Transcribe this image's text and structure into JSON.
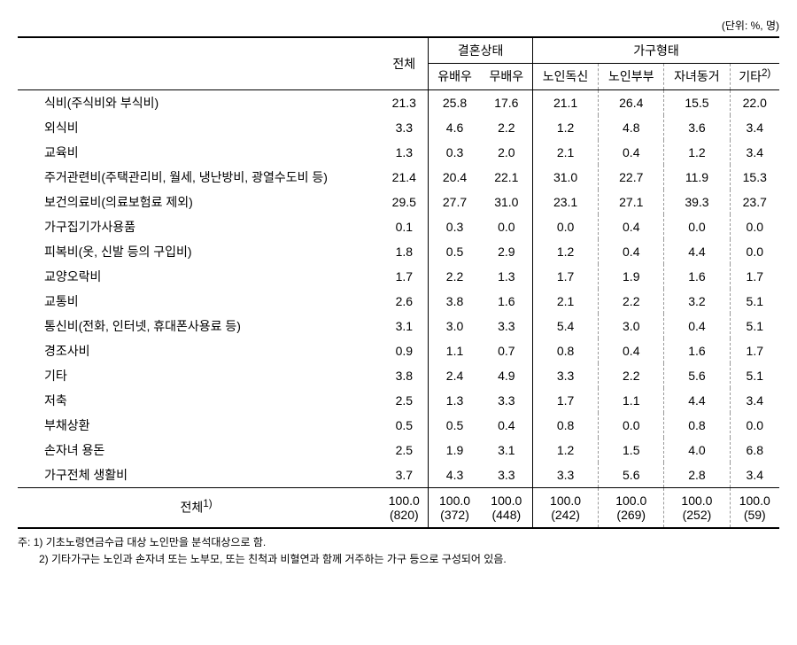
{
  "unit": "(단위: %, 명)",
  "headers": {
    "blank": "",
    "total": "전체",
    "marital": "결혼상태",
    "marital_1": "유배우",
    "marital_2": "무배우",
    "household": "가구형태",
    "house_1": "노인독신",
    "house_2": "노인부부",
    "house_3": "자녀동거",
    "house_4": "기타",
    "house_4_sup": "2)"
  },
  "rows": [
    {
      "label": "식비(주식비와 부식비)",
      "v": [
        "21.3",
        "25.8",
        "17.6",
        "21.1",
        "26.4",
        "15.5",
        "22.0"
      ]
    },
    {
      "label": "외식비",
      "v": [
        "3.3",
        "4.6",
        "2.2",
        "1.2",
        "4.8",
        "3.6",
        "3.4"
      ]
    },
    {
      "label": "교육비",
      "v": [
        "1.3",
        "0.3",
        "2.0",
        "2.1",
        "0.4",
        "1.2",
        "3.4"
      ]
    },
    {
      "label": "주거관련비(주택관리비, 월세, 냉난방비, 광열수도비 등)",
      "v": [
        "21.4",
        "20.4",
        "22.1",
        "31.0",
        "22.7",
        "11.9",
        "15.3"
      ]
    },
    {
      "label": "보건의료비(의료보험료 제외)",
      "v": [
        "29.5",
        "27.7",
        "31.0",
        "23.1",
        "27.1",
        "39.3",
        "23.7"
      ]
    },
    {
      "label": "가구집기가사용품",
      "v": [
        "0.1",
        "0.3",
        "0.0",
        "0.0",
        "0.4",
        "0.0",
        "0.0"
      ]
    },
    {
      "label": "피복비(옷, 신발 등의 구입비)",
      "v": [
        "1.8",
        "0.5",
        "2.9",
        "1.2",
        "0.4",
        "4.4",
        "0.0"
      ]
    },
    {
      "label": "교양오락비",
      "v": [
        "1.7",
        "2.2",
        "1.3",
        "1.7",
        "1.9",
        "1.6",
        "1.7"
      ]
    },
    {
      "label": "교통비",
      "v": [
        "2.6",
        "3.8",
        "1.6",
        "2.1",
        "2.2",
        "3.2",
        "5.1"
      ]
    },
    {
      "label": "통신비(전화, 인터넷, 휴대폰사용료 등)",
      "v": [
        "3.1",
        "3.0",
        "3.3",
        "5.4",
        "3.0",
        "0.4",
        "5.1"
      ]
    },
    {
      "label": "경조사비",
      "v": [
        "0.9",
        "1.1",
        "0.7",
        "0.8",
        "0.4",
        "1.6",
        "1.7"
      ]
    },
    {
      "label": "기타",
      "v": [
        "3.8",
        "2.4",
        "4.9",
        "3.3",
        "2.2",
        "5.6",
        "5.1"
      ]
    },
    {
      "label": "저축",
      "v": [
        "2.5",
        "1.3",
        "3.3",
        "1.7",
        "1.1",
        "4.4",
        "3.4"
      ]
    },
    {
      "label": "부채상환",
      "v": [
        "0.5",
        "0.5",
        "0.4",
        "0.8",
        "0.0",
        "0.8",
        "0.0"
      ]
    },
    {
      "label": "손자녀 용돈",
      "v": [
        "2.5",
        "1.9",
        "3.1",
        "1.2",
        "1.5",
        "4.0",
        "6.8"
      ]
    },
    {
      "label": "가구전체 생활비",
      "v": [
        "3.7",
        "4.3",
        "3.3",
        "3.3",
        "5.6",
        "2.8",
        "3.4"
      ]
    }
  ],
  "total": {
    "label": "전체",
    "sup": "1)",
    "pct": [
      "100.0",
      "100.0",
      "100.0",
      "100.0",
      "100.0",
      "100.0",
      "100.0"
    ],
    "cnt": [
      "(820)",
      "(372)",
      "(448)",
      "(242)",
      "(269)",
      "(252)",
      "(59)"
    ]
  },
  "notes": {
    "n1": "주: 1) 기초노령연금수급 대상 노인만을 분석대상으로 함.",
    "n2": "2) 기타가구는 노인과 손자녀 또는 노부모, 또는 친척과 비혈연과 함께 거주하는 가구 등으로 구성되어 있음."
  }
}
